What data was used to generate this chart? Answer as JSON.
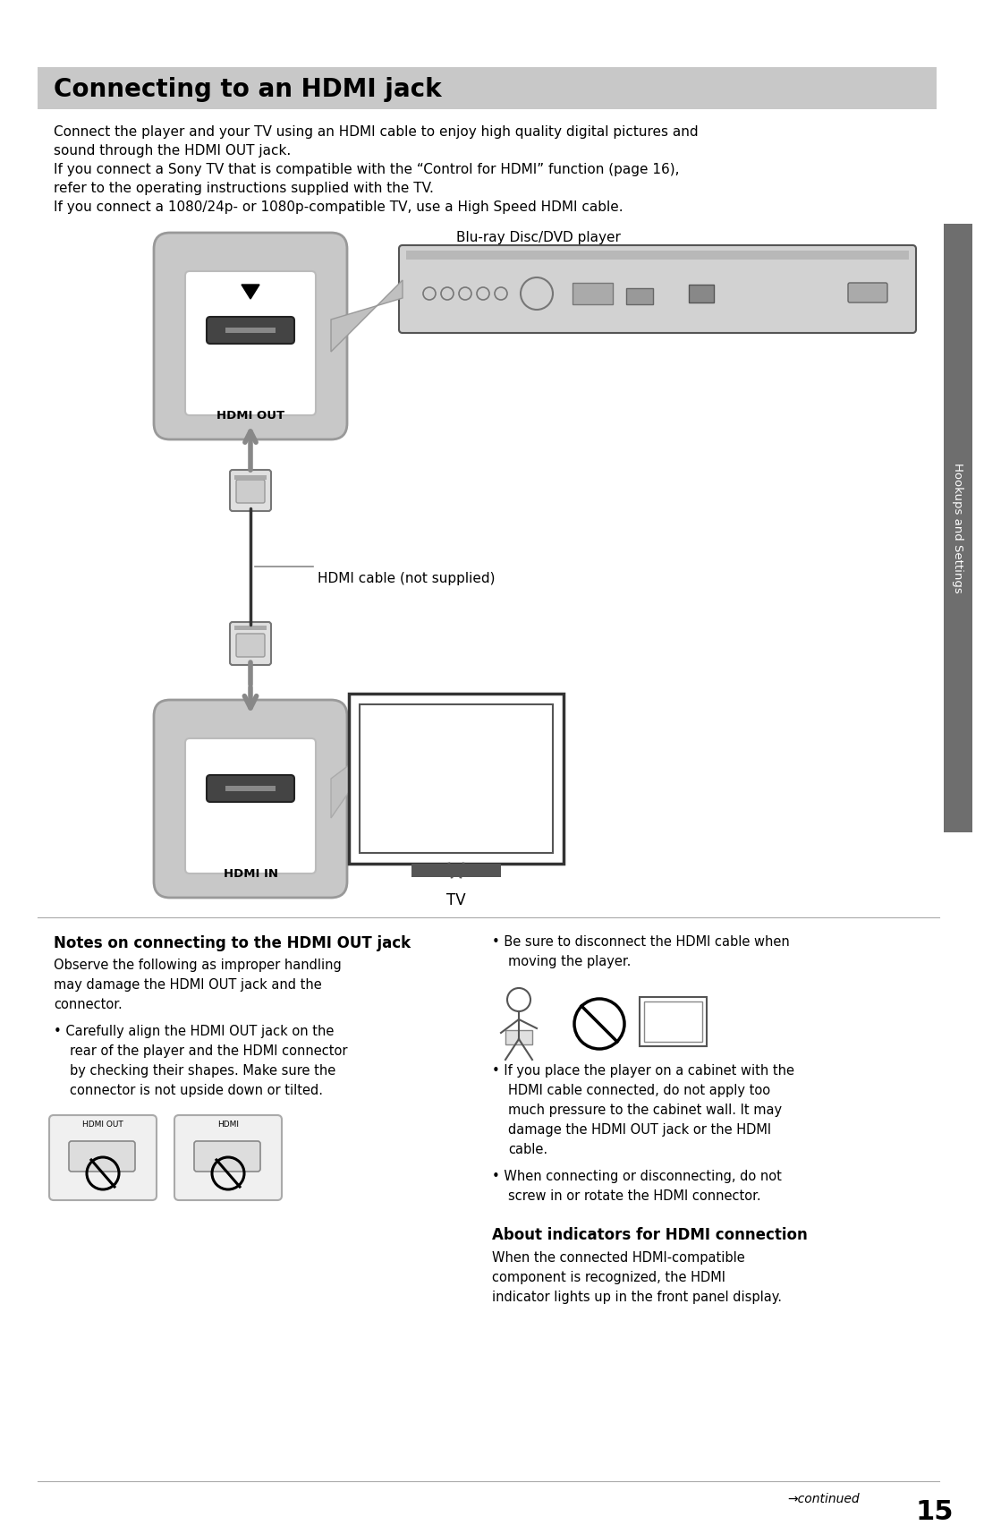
{
  "title": "Connecting to an HDMI jack",
  "title_bg": "#c8c8c8",
  "page_bg": "#ffffff",
  "body_text_1": "Connect the player and your TV using an HDMI cable to enjoy high quality digital pictures and",
  "body_text_1b": "sound through the HDMI OUT jack.",
  "body_text_2": "If you connect a Sony TV that is compatible with the “Control for HDMI” function (page 16),",
  "body_text_2b": "refer to the operating instructions supplied with the TV.",
  "body_text_3": "If you connect a 1080/24p- or 1080p-compatible TV, use a High Speed HDMI cable.",
  "label_blu_ray": "Blu-ray Disc/DVD player",
  "label_hdmi_cable": "HDMI cable (not supplied)",
  "label_tv": "TV",
  "label_hdmi_out": "HDMI OUT",
  "label_hdmi_in": "HDMI IN",
  "sidebar_text": "Hookups and Settings",
  "sidebar_color": "#6e6e6e",
  "section_notes_title": "Notes on connecting to the HDMI OUT jack",
  "notes_text_1": "Observe the following as improper handling",
  "notes_text_2": "may damage the HDMI OUT jack and the",
  "notes_text_3": "connector.",
  "notes_b1a": "• Carefully align the HDMI OUT jack on the",
  "notes_b1b": "rear of the player and the HDMI connector",
  "notes_b1c": "by checking their shapes. Make sure the",
  "notes_b1d": "connector is not upside down or tilted.",
  "rb1a": "• Be sure to disconnect the HDMI cable when",
  "rb1b": "moving the player.",
  "rb2a": "• If you place the player on a cabinet with the",
  "rb2b": "HDMI cable connected, do not apply too",
  "rb2c": "much pressure to the cabinet wall. It may",
  "rb2d": "damage the HDMI OUT jack or the HDMI",
  "rb2e": "cable.",
  "rb3a": "• When connecting or disconnecting, do not",
  "rb3b": "screw in or rotate the HDMI connector.",
  "about_title": "About indicators for HDMI connection",
  "about_1": "When the connected HDMI-compatible",
  "about_2": "component is recognized, the HDMI",
  "about_3": "indicator lights up in the front panel display.",
  "footer_arrow": "→continued",
  "footer_num": "15",
  "black": "#000000",
  "white": "#ffffff",
  "light_gray": "#cccccc",
  "mid_gray": "#aaaaaa",
  "dark_gray": "#666666",
  "panel_gray": "#c8c8c8",
  "port_dark": "#444444"
}
